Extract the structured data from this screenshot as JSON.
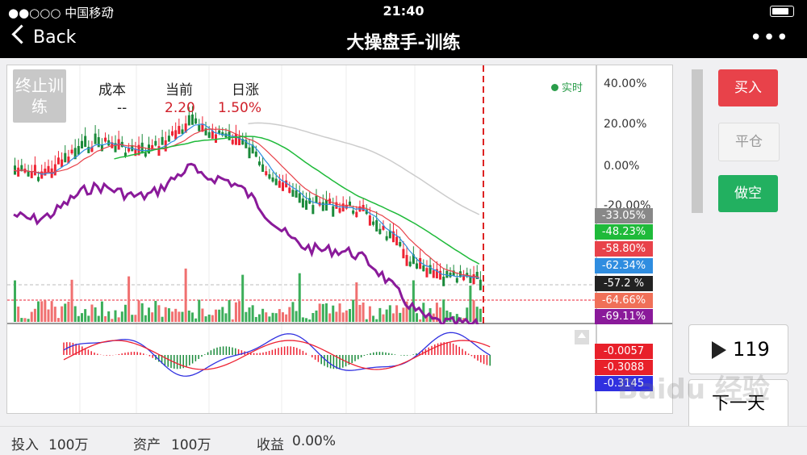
{
  "status": {
    "signal": "●●○○○ 中国移动",
    "time": "21:40"
  },
  "nav": {
    "back": "Back",
    "title": "大操盘手-训练"
  },
  "chart": {
    "stop_label": "终止训练",
    "cost_label": "成本",
    "cost_value": "--",
    "current_label": "当前",
    "current_value": "2.20",
    "change_label": "日涨",
    "change_value": "1.50%",
    "live_label": "实时",
    "axis_ticks": [
      "40.00%",
      "20.00%",
      "0.00%",
      "-20.00%"
    ],
    "ma_tags": [
      {
        "text": "-33.05%",
        "color": "#888888"
      },
      {
        "text": "-48.23%",
        "color": "#1fba3a"
      },
      {
        "text": "-58.80%",
        "color": "#e8424a"
      },
      {
        "text": "-62.34%",
        "color": "#2f8de0"
      },
      {
        "text": "-57.2  %",
        "color": "#222222"
      },
      {
        "text": "-64.66%",
        "color": "#f07058"
      },
      {
        "text": "-69.11%",
        "color": "#8a1a9a"
      }
    ],
    "macd_tags": [
      {
        "text": "-0.0057",
        "color": "#e8202a"
      },
      {
        "text": "-0.3088",
        "color": "#e8202a"
      },
      {
        "text": "-0.3145",
        "color": "#3030e0"
      }
    ]
  },
  "side": {
    "buy": "买入",
    "flat": "平仓",
    "short": "做空",
    "play_count": "119",
    "next": "下一天"
  },
  "bottom": {
    "invest_label": "投入",
    "invest_value": "100万",
    "asset_label": "资产",
    "asset_value": "100万",
    "profit_label": "收益",
    "profit_value": "0.00%"
  },
  "watermark": "Baidu 经验"
}
